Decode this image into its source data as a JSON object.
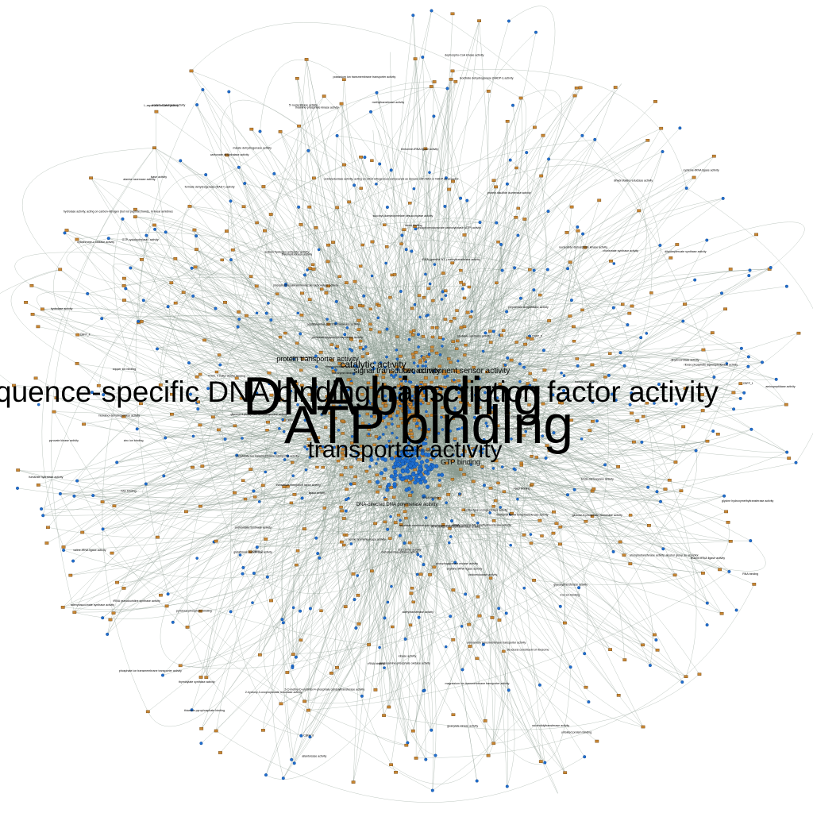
{
  "colors": {
    "background": "#ffffff",
    "edge": "#8a9a8f",
    "term_node": "#1f6fd0",
    "gene_node": "#c98632",
    "label": "#000000"
  },
  "hub_labels": {
    "dna_binding": "DNA binding",
    "atp_binding": "ATP binding",
    "sequence_specific": "sequence-specific DNA binding transcription factor activity",
    "catalytic": "catalytic activity",
    "transporter": "transporter activity",
    "protein_transporter": "protein transporter activity",
    "signal_transducer": "signal transducer activity",
    "two_component": "two-component sensor activity",
    "gtp_binding": "GTP binding",
    "dna_directed": "DNA-directed DNA polymerase activity"
  },
  "minor_labels": [
    "tRNA (guanine-N7-)-methyltransferase activity",
    "cytochrome-c oxidase activity",
    "thymidylate synthase activity",
    "rRNA (guanine-N2-)-methyltransferase activity",
    "allantoicase activity",
    "pyridoxamine-phosphate oxidase activity",
    "2-hydroxy-3-oxopropionate reductase activity",
    "dihydroorotase activity",
    "phosphoribosylaminoimidazole carboxylase activity",
    "tRNA pseudouridine synthase activity",
    "glycerol-3-phosphate dehydrogenase activity",
    "phosphatidylglycerophosphatase activity",
    "hydrolase activity, acting on carbon-nitrogen (but not peptide) bonds, in linear amidines",
    "glucosamine-6-phosphate deaminase activity",
    "ammonium transmembrane transporter activity",
    "sodium:hydrogen antiporter activity",
    "L-aspartate oxidase activity",
    "molybdate ion transmembrane transporter activity",
    "threonine-tRNA ligase activity",
    "2-C-methyl-D-erythritol 4-phosphate cytidylyltransferase activity",
    "glutathione transferase activity",
    "succinyl-diaminopimelate desuccinylase activity",
    "protein disulfide isomerase activity",
    "oxidoreductase activity, acting on other nitrogenous compounds as donors, with NAD or NADP as acceptor",
    "aspartate-semialdehyde dehydrogenase activity",
    "phosphoglycerate mutase activity",
    "dihydropteroate synthase activity",
    "glycine hydroxymethyltransferase activity",
    "translation elongation factor activity",
    "methionyl-tRNA formyltransferase activity",
    "adenylosuccinate synthase activity",
    "ribose phosphate diphosphokinase activity",
    "L-serine ammonia-lyase activity",
    "pyruvate kinase activity",
    "5'-nucleotidase activity",
    "acetate-CoA ligase activity",
    "RNA binding",
    "magnesium ion transmembrane transporter activity",
    "dephospho-CoA kinase activity",
    "cysteine-tRNA ligase activity",
    "alanine racemase activity",
    "acyl carrier activity",
    "glucose-6-phosphate isomerase activity",
    "citrate synthase activity",
    "isocitrate dehydrogenase (NADP+) activity",
    "fumarate hydratase activity",
    "malate dehydrogenase activity",
    "formate dehydrogenase (NAD+) activity",
    "tryptophan synthase activity",
    "anthranilate synthase activity",
    "carbonate dehydratase activity",
    "nucleoside diphosphate kinase activity",
    "guanylate kinase activity",
    "thiamine-phosphate kinase activity",
    "biotin carboxylase activity",
    "phosphoenolpyruvate carboxykinase (ATP) activity",
    "riboflavin synthase activity",
    "GTP cyclohydrolase I activity",
    "dihydrofolate reductase activity",
    "chorismate synthase activity",
    "shikimate kinase activity",
    "prephenate dehydratase activity",
    "histidinol dehydrogenase activity",
    "ATP phosphoribosyltransferase activity",
    "arginine-tRNA ligase activity",
    "leucine-tRNA ligase activity",
    "valine-tRNA ligase activity",
    "serine-type endopeptidase activity",
    "metalloendopeptidase activity",
    "aminopeptidase activity",
    "phosphate ion transmembrane transporter activity",
    "potassium ion transmembrane transporter activity",
    "iron ion binding",
    "zinc ion binding",
    "copper ion binding",
    "NAD binding",
    "FAD binding",
    "heme binding",
    "rRNA binding",
    "structural constituent of ribosome",
    "tRNA binding",
    "peptidyl-prolyl cis-trans isomerase activity",
    "unfolded protein binding",
    "electron carrier activity",
    "oxidoreductase activity",
    "hydrolase activity",
    "kinase activity",
    "transferase activity",
    "lyase activity",
    "ligase activity",
    "isomerase activity",
    "methyltransferase activity",
    "acetyltransferase activity",
    "glycosyltransferase activity",
    "nucleotidyltransferase activity",
    "phosphotransferase activity, alcohol group as acceptor",
    "coenzyme binding",
    "pyridoxal phosphate binding",
    "thiamine pyrophosphate binding",
    "4 iron, 4 sulfur cluster binding"
  ],
  "gene_label_samples": [
    "CBFP_0",
    "CBFP_1",
    "CBFP_2",
    "CBFP_3",
    "CBFP_4",
    "CBFP_5"
  ]
}
